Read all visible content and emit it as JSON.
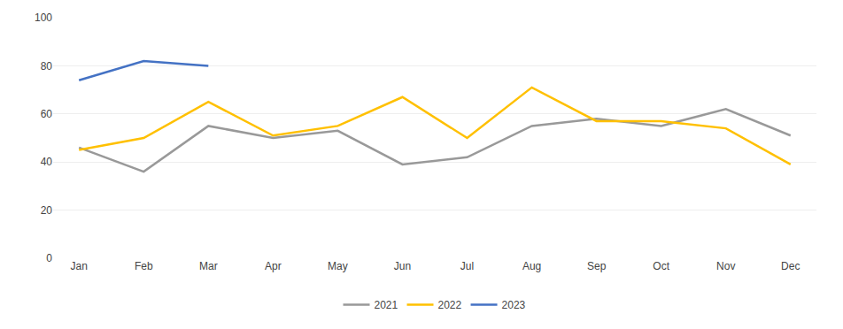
{
  "chart_data": {
    "type": "line",
    "categories": [
      "Jan",
      "Feb",
      "Mar",
      "Apr",
      "May",
      "Jun",
      "Jul",
      "Aug",
      "Sep",
      "Oct",
      "Nov",
      "Dec"
    ],
    "series": [
      {
        "name": "2021",
        "color": "#999999",
        "values": [
          46,
          36,
          55,
          50,
          53,
          39,
          42,
          55,
          58,
          55,
          62,
          51
        ]
      },
      {
        "name": "2022",
        "color": "#FFC000",
        "values": [
          45,
          50,
          65,
          51,
          55,
          67,
          50,
          71,
          57,
          57,
          54,
          39
        ]
      },
      {
        "name": "2023",
        "color": "#4472C4",
        "values": [
          74,
          82,
          80,
          null,
          null,
          null,
          null,
          null,
          null,
          null,
          null,
          null
        ]
      }
    ],
    "ylim": [
      0,
      100
    ],
    "yticks": [
      0,
      20,
      40,
      60,
      80,
      100
    ],
    "grid": true,
    "legend": "bottom"
  }
}
